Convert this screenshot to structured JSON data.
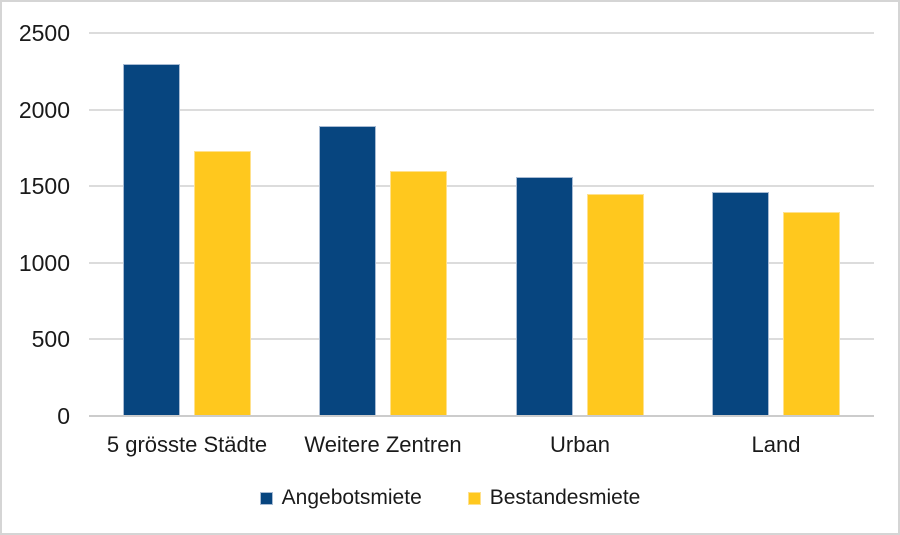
{
  "chart_data": {
    "type": "bar",
    "title": "",
    "xlabel": "",
    "ylabel": "",
    "categories": [
      "5 grösste Städte",
      "Weitere Zentren",
      "Urban",
      "Land"
    ],
    "series": [
      {
        "name": "Angebotsmiete",
        "color": "#07457F",
        "border_color": "#a8bbd3",
        "values": [
          2300,
          1890,
          1560,
          1460
        ]
      },
      {
        "name": "Bestandesmiete",
        "color": "#FFC81E",
        "border_color": "#ffe18d",
        "values": [
          1730,
          1600,
          1450,
          1330
        ]
      }
    ],
    "ylim": [
      0,
      2500
    ],
    "ytick_step": 500,
    "ytick_labels": [
      "0",
      "500",
      "1000",
      "1500",
      "2000",
      "2500"
    ],
    "grid": "horizontal",
    "legend_position": "bottom"
  },
  "colors": {
    "gridline": "#dcdcdc",
    "axis_line": "#cccccc",
    "text": "#1a1a1a",
    "background": "#ffffff",
    "frame_border": "#d5d5d5"
  }
}
